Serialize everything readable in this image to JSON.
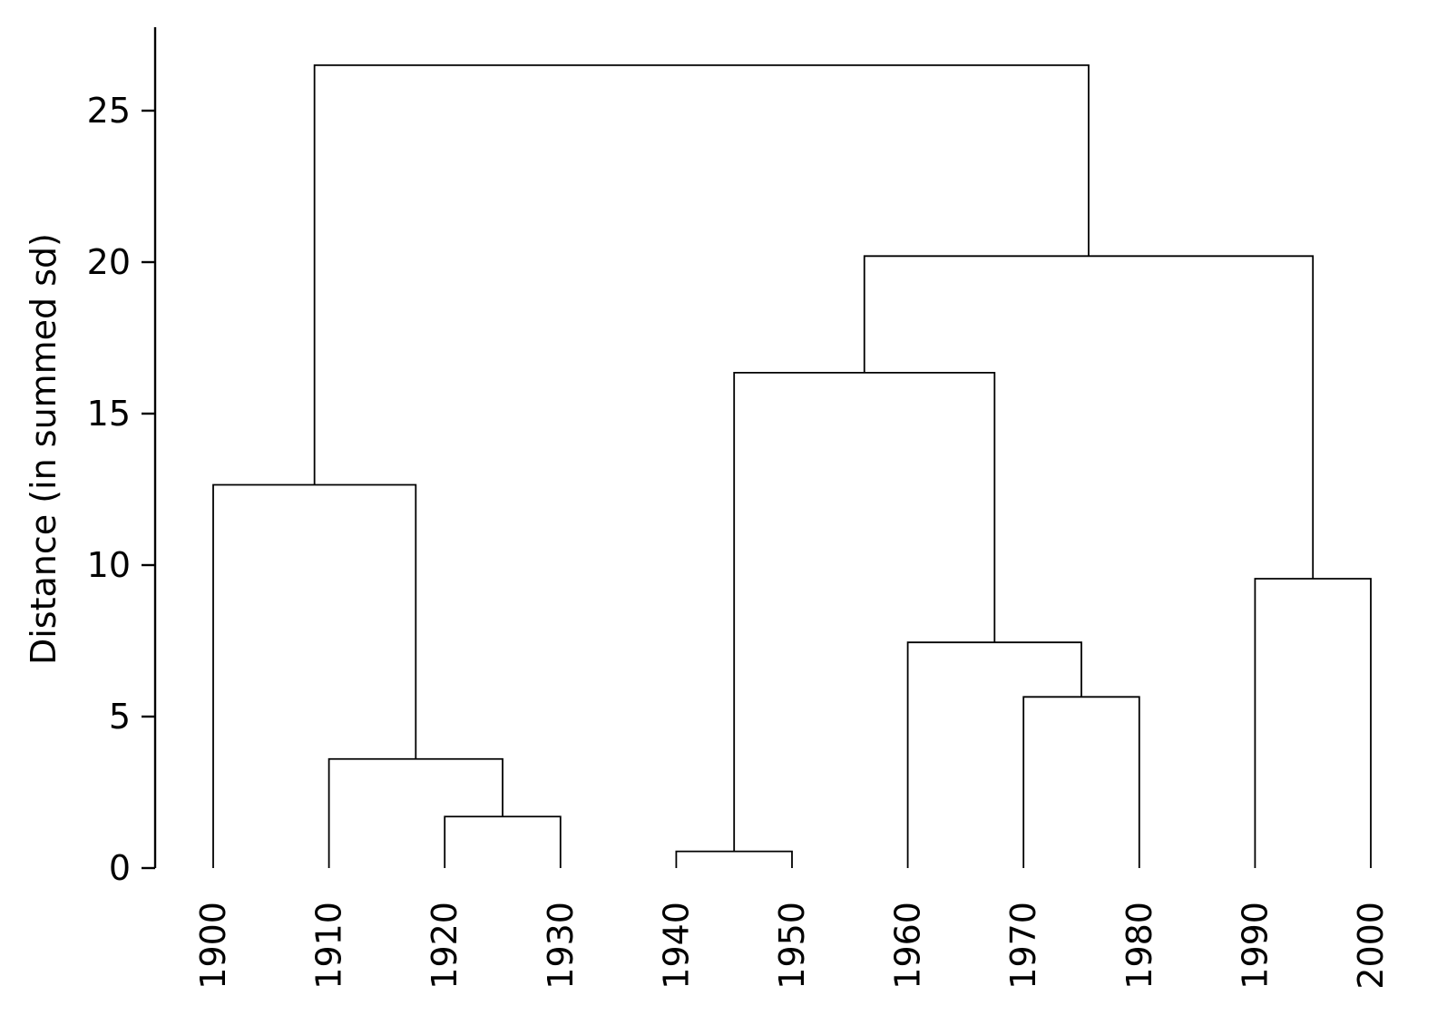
{
  "chart_data": {
    "type": "dendrogram",
    "title": "",
    "xlabel": "",
    "ylabel": "Distance (in summed sd)",
    "ylim": [
      0,
      27.8
    ],
    "yticks": [
      0,
      5,
      10,
      15,
      20,
      25
    ],
    "leaves": [
      "1900",
      "1910",
      "1920",
      "1930",
      "1940",
      "1950",
      "1960",
      "1970",
      "1980",
      "1990",
      "2000"
    ],
    "merges": [
      {
        "left": "1940",
        "right": "1950",
        "height": 0.55
      },
      {
        "left": "1920",
        "right": "1930",
        "height": 1.7
      },
      {
        "left": "1910",
        "right": "1920-1930",
        "height": 3.6
      },
      {
        "left": "1970",
        "right": "1980",
        "height": 5.65
      },
      {
        "left": "1960",
        "right": "1970-1980",
        "height": 7.45
      },
      {
        "left": "1990",
        "right": "2000",
        "height": 9.55
      },
      {
        "left": "1900",
        "right": "1910-1930",
        "height": 12.65
      },
      {
        "left": "1940-1950",
        "right": "1960-1980",
        "height": 16.35
      },
      {
        "left": "1940-1980",
        "right": "1990-2000",
        "height": 20.2
      },
      {
        "left": "1900-1930",
        "right": "1940-2000",
        "height": 26.5
      }
    ],
    "grid": false,
    "legend": "none"
  }
}
